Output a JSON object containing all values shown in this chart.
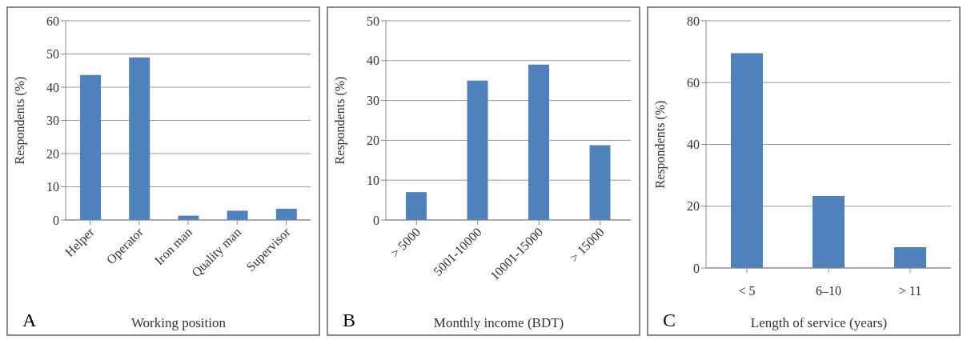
{
  "chart_data": [
    {
      "type": "bar",
      "xlabel": "Working position",
      "ylabel": "Respondents (%)",
      "categories": [
        "Helper",
        "Operator",
        "Iron man",
        "Quality man",
        "Supervisor"
      ],
      "values": [
        43.7,
        49,
        1.3,
        2.8,
        3.4
      ],
      "color": "#4f81bd",
      "ylim": [
        0,
        60
      ],
      "yticks": [
        0,
        10,
        20,
        30,
        40,
        50,
        60
      ],
      "grid": "y",
      "annotations": [
        "A"
      ]
    },
    {
      "type": "bar",
      "xlabel": "Monthly income (BDT)",
      "ylabel": "Respondents (%)",
      "categories": [
        "> 5000",
        "5001-10000",
        "10001-15000",
        "> 15000"
      ],
      "values": [
        7,
        35,
        39,
        18.8
      ],
      "color": "#4f81bd",
      "ylim": [
        0,
        50
      ],
      "yticks": [
        0,
        10,
        20,
        30,
        40,
        50
      ],
      "grid": "y",
      "annotations": [
        "B"
      ]
    },
    {
      "type": "bar",
      "xlabel": "Length of service (years)",
      "ylabel": "Respondents (%)",
      "categories": [
        "< 5",
        "6–10",
        "> 11"
      ],
      "values": [
        69.5,
        23.3,
        6.7
      ],
      "color": "#4f81bd",
      "ylim": [
        0,
        80
      ],
      "yticks": [
        0,
        20,
        40,
        60,
        80
      ],
      "grid": "y",
      "annotations": [
        "C"
      ]
    }
  ]
}
